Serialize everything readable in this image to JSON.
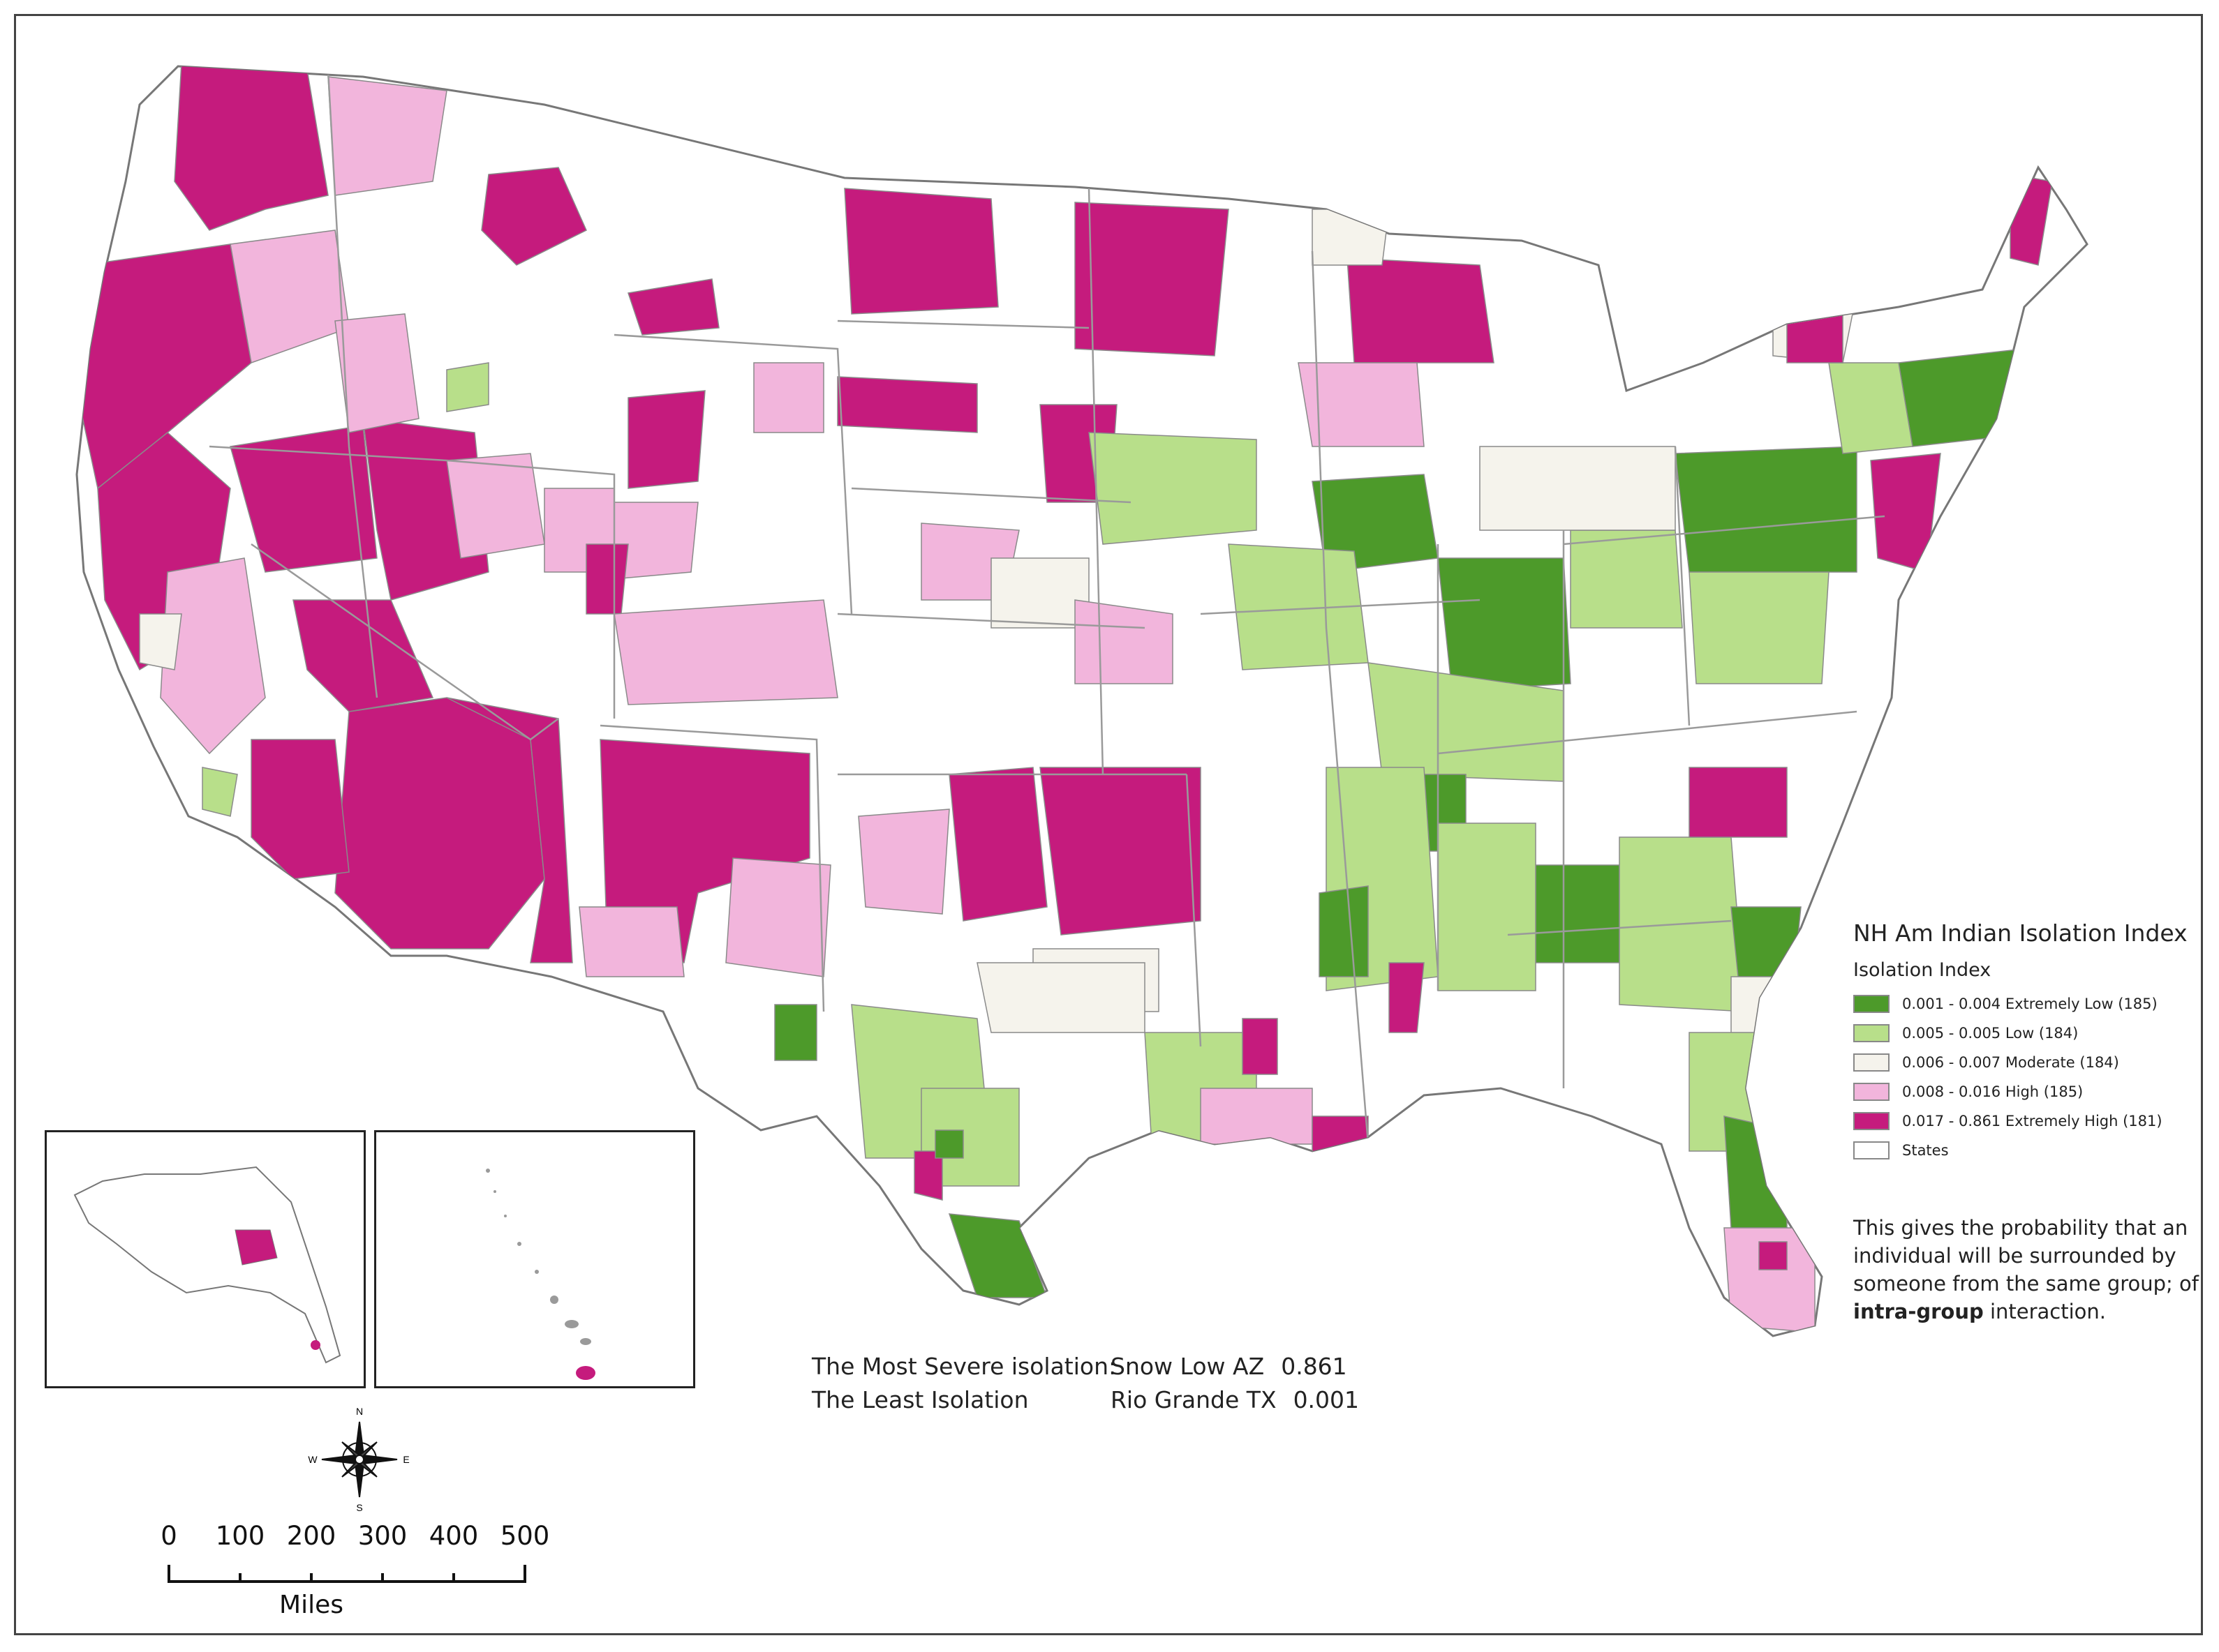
{
  "legend": {
    "title": "NH Am Indian Isolation Index",
    "subtitle": "Isolation Index",
    "classes": [
      {
        "label": "0.001 - 0.004 Extremely Low (185)",
        "color": "#4d9a2a"
      },
      {
        "label": "0.005 - 0.005  Low (184)",
        "color": "#b8df8a"
      },
      {
        "label": "0.006 - 0.007  Moderate (184)",
        "color": "#f5f3ec"
      },
      {
        "label": "0.008 - 0.016  High (185)",
        "color": "#f2b5dc"
      },
      {
        "label": "0.017 - 0.861 Extremely High (181)",
        "color": "#c51b7d"
      },
      {
        "label": "States",
        "color": "#ffffff"
      }
    ]
  },
  "note": {
    "text_before": "This gives the probability that an individual will be surrounded by someone from the same group; of ",
    "text_bold": "intra-group",
    "text_after": " interaction."
  },
  "stats": {
    "most_label": "The Most Severe isolation:",
    "most_place": "Snow Low AZ",
    "most_value": "0.861",
    "least_label": "The Least Isolation",
    "least_place": "Rio Grande TX",
    "least_value": "0.001"
  },
  "compass": {
    "n": "N",
    "s": "S",
    "e": "E",
    "w": "W"
  },
  "scale_bar": {
    "ticks": [
      "0",
      "100",
      "200",
      "300",
      "400",
      "500"
    ],
    "unit": "Miles"
  },
  "icons": {
    "compass": "compass-rose-icon"
  }
}
